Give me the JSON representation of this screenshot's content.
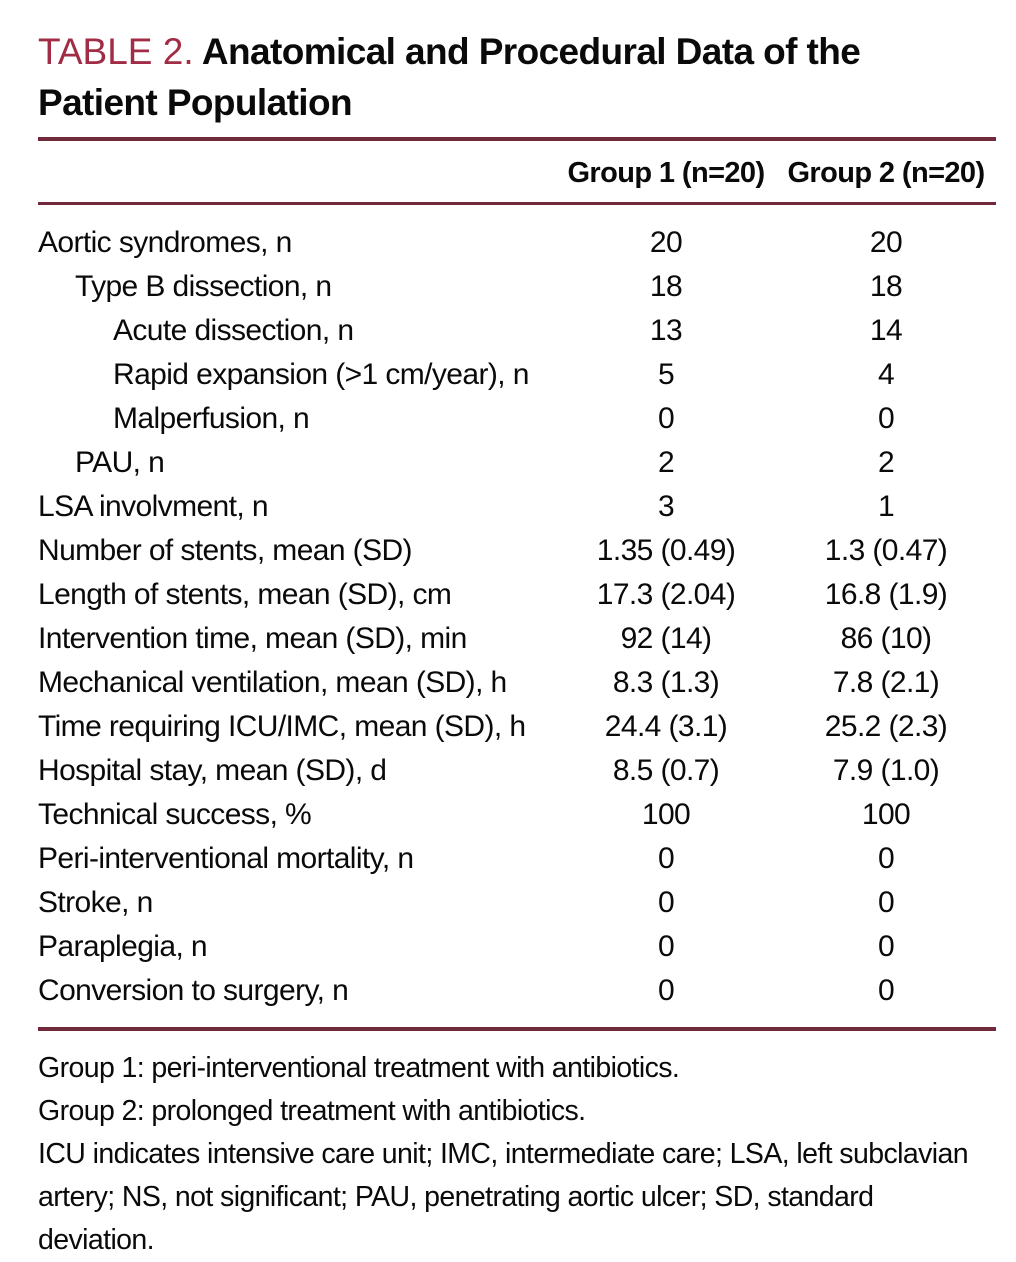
{
  "colors": {
    "accent_title": "#a12c45",
    "rule": "#702a3c",
    "text": "#0a0a0a",
    "background": "#ffffff"
  },
  "table": {
    "label": "TABLE 2.",
    "title_line1": "Anatomical and Procedural Data of the",
    "title_line2": "Patient Population",
    "columns": [
      "Group 1 (n=20)",
      "Group 2 (n=20)"
    ],
    "rows": [
      {
        "label": "Aortic syndromes, n",
        "indent": 0,
        "group1": "20",
        "group2": "20"
      },
      {
        "label": "Type B dissection, n",
        "indent": 1,
        "group1": "18",
        "group2": "18"
      },
      {
        "label": "Acute dissection, n",
        "indent": 2,
        "group1": "13",
        "group2": "14"
      },
      {
        "label": "Rapid expansion (>1 cm/year), n",
        "indent": 2,
        "group1": "5",
        "group2": "4"
      },
      {
        "label": "Malperfusion, n",
        "indent": 2,
        "group1": "0",
        "group2": "0"
      },
      {
        "label": "PAU, n",
        "indent": 1,
        "group1": "2",
        "group2": "2"
      },
      {
        "label": "LSA involvment, n",
        "indent": 0,
        "group1": "3",
        "group2": "1"
      },
      {
        "label": "Number of stents, mean (SD)",
        "indent": 0,
        "group1": "1.35 (0.49)",
        "group2": "1.3 (0.47)"
      },
      {
        "label": "Length of stents, mean (SD), cm",
        "indent": 0,
        "group1": "17.3 (2.04)",
        "group2": "16.8 (1.9)"
      },
      {
        "label": "Intervention time, mean (SD), min",
        "indent": 0,
        "group1": "92 (14)",
        "group2": "86 (10)"
      },
      {
        "label": "Mechanical ventilation, mean (SD), h",
        "indent": 0,
        "group1": "8.3 (1.3)",
        "group2": "7.8 (2.1)"
      },
      {
        "label": "Time requiring ICU/IMC, mean (SD), h",
        "indent": 0,
        "group1": "24.4 (3.1)",
        "group2": "25.2 (2.3)"
      },
      {
        "label": "Hospital stay, mean (SD), d",
        "indent": 0,
        "group1": "8.5 (0.7)",
        "group2": "7.9 (1.0)"
      },
      {
        "label": "Technical success, %",
        "indent": 0,
        "group1": "100",
        "group2": "100"
      },
      {
        "label": "Peri-interventional mortality, n",
        "indent": 0,
        "group1": "0",
        "group2": "0"
      },
      {
        "label": "Stroke, n",
        "indent": 0,
        "group1": "0",
        "group2": "0"
      },
      {
        "label": "Paraplegia, n",
        "indent": 0,
        "group1": "0",
        "group2": "0"
      },
      {
        "label": "Conversion to surgery, n",
        "indent": 0,
        "group1": "0",
        "group2": "0"
      }
    ],
    "footnotes": [
      "Group 1: peri-interventional treatment with antibiotics.",
      "Group 2: prolonged treatment with antibiotics.",
      "ICU indicates intensive care unit; IMC, intermediate care; LSA, left subclavian artery; NS, not significant; PAU, penetrating aortic ulcer; SD, standard deviation."
    ]
  }
}
